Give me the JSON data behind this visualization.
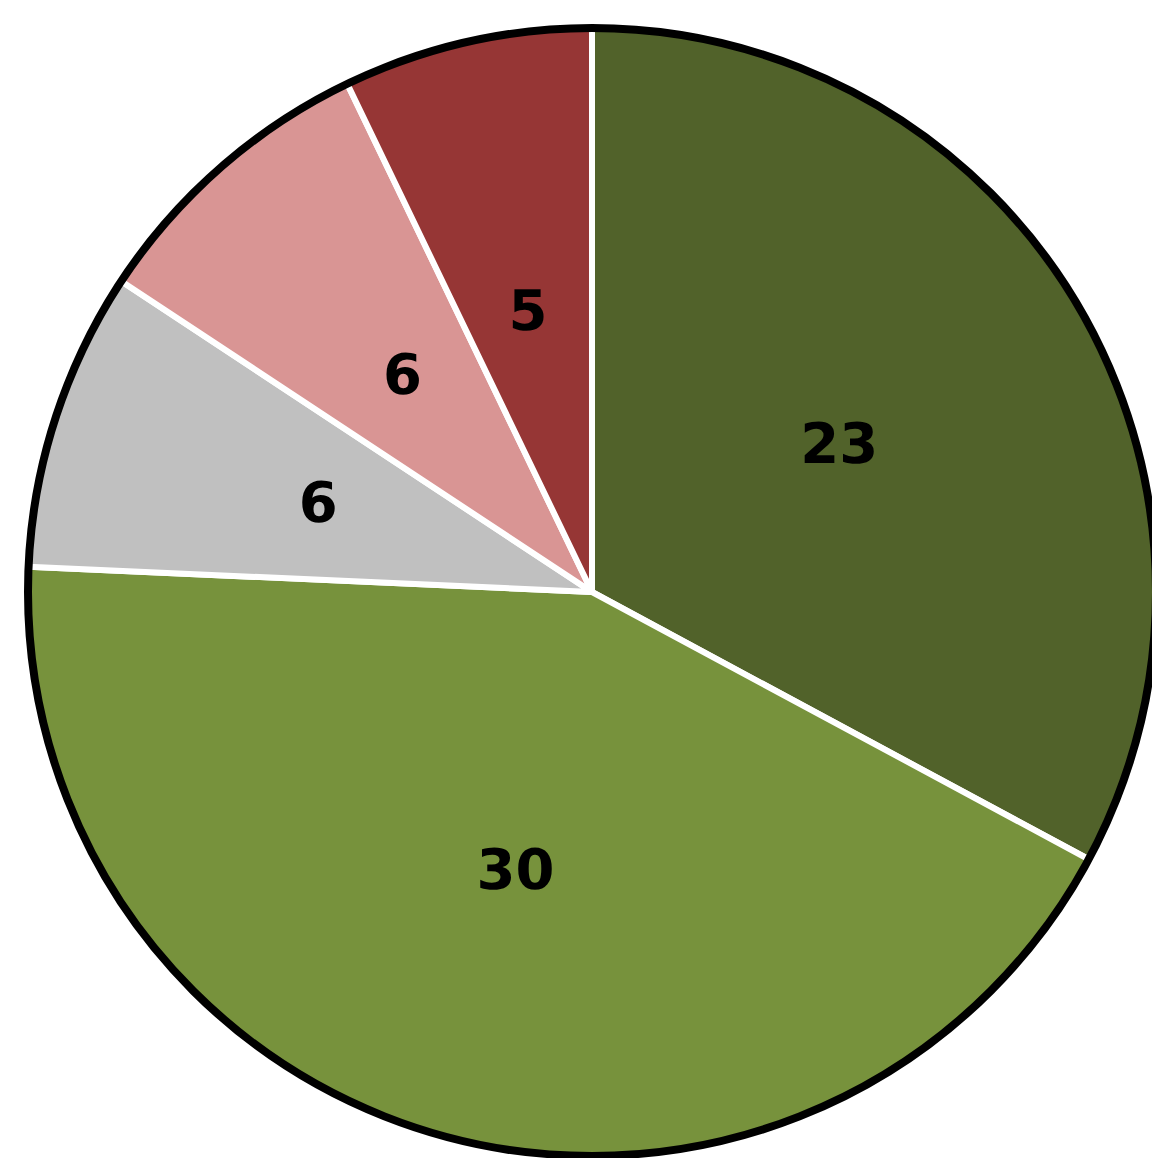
{
  "chart_data": {
    "type": "pie",
    "categories": [
      null,
      null,
      null,
      null,
      null
    ],
    "values": [
      23,
      30,
      6,
      6,
      5
    ],
    "colors": [
      "#51622a",
      "#77923c",
      "#c0c0c0",
      "#d99594",
      "#963635"
    ],
    "data_labels": true
  }
}
